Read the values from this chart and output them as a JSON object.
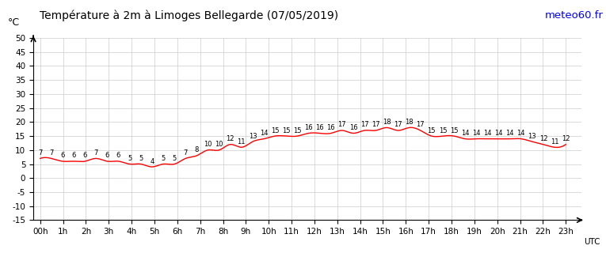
{
  "title": "Température à 2m à Limoges Bellegarde (07/05/2019)",
  "ylabel": "°C",
  "xlabel_right": "UTC",
  "meteo_url": "meteo60.fr",
  "hour_labels": [
    "00h",
    "1h",
    "2h",
    "3h",
    "4h",
    "5h",
    "6h",
    "7h",
    "8h",
    "9h",
    "10h",
    "11h",
    "12h",
    "13h",
    "14h",
    "15h",
    "16h",
    "17h",
    "18h",
    "19h",
    "20h",
    "21h",
    "22h",
    "23h"
  ],
  "temps": [
    7,
    7,
    6,
    6,
    6,
    5,
    5,
    7,
    8,
    10,
    10,
    12,
    11,
    13,
    14,
    15,
    15,
    15,
    16,
    16,
    16,
    17,
    16,
    17,
    17,
    18,
    17,
    18,
    17,
    15,
    15,
    15,
    14,
    14,
    14,
    14,
    14,
    14,
    13,
    12,
    11,
    12
  ],
  "temps_display": [
    7,
    7,
    6,
    6,
    6,
    5,
    5,
    7,
    8,
    10,
    10,
    12,
    11,
    13,
    14,
    15,
    15,
    15,
    16,
    16,
    16,
    17,
    16,
    17,
    17,
    18,
    17,
    18,
    17,
    15,
    15,
    15,
    14,
    14,
    14,
    14,
    14,
    14,
    13,
    12,
    11,
    12
  ],
  "hourly_temps": [
    7,
    7,
    6,
    6,
    6,
    5,
    5,
    7,
    8,
    10,
    10,
    12,
    11,
    13,
    14,
    15,
    15,
    15,
    16,
    16,
    16,
    17,
    16,
    17,
    17,
    18,
    17,
    18,
    17,
    15,
    15,
    15,
    14,
    14,
    14,
    14,
    14,
    14,
    13,
    12,
    11,
    12
  ],
  "ylim": [
    -15,
    50
  ],
  "yticks": [
    -15,
    -10,
    -5,
    0,
    5,
    10,
    15,
    20,
    25,
    30,
    35,
    40,
    45,
    50
  ],
  "line_color": "#ff0000",
  "grid_color": "#cccccc",
  "background_color": "#ffffff",
  "title_color": "#000000",
  "meteo_color": "#0000ff",
  "title_fontsize": 10,
  "label_fontsize": 7.5,
  "temp_label_fontsize": 6
}
